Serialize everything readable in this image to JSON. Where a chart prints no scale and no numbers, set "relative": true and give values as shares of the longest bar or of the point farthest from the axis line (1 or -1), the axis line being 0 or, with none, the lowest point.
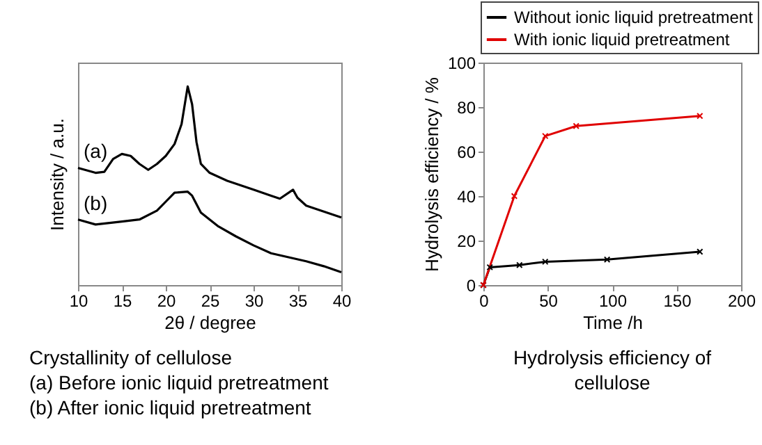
{
  "chart_data": [
    {
      "type": "line",
      "relative": true,
      "xlabel": "2θ / degree",
      "ylabel": "Intensity / a.u.",
      "xlim": [
        10,
        40
      ],
      "xticks": [
        10,
        15,
        20,
        25,
        30,
        35,
        40
      ],
      "tick_labels": "x",
      "series": [
        {
          "color": "#000000",
          "x": [
            10,
            12,
            13,
            14,
            15,
            16,
            17,
            18,
            19,
            20,
            21,
            21.8,
            22.5,
            23,
            23.5,
            24,
            25,
            27,
            30,
            32,
            33,
            34.5,
            35,
            36,
            38,
            40
          ],
          "values": [
            0.59,
            0.565,
            0.57,
            0.635,
            0.66,
            0.65,
            0.61,
            0.58,
            0.61,
            0.65,
            0.71,
            0.81,
            1,
            0.91,
            0.72,
            0.61,
            0.565,
            0.525,
            0.48,
            0.45,
            0.435,
            0.48,
            0.44,
            0.4,
            0.37,
            0.34
          ]
        },
        {
          "color": "#000000",
          "x": [
            10,
            12,
            15,
            17,
            19,
            20,
            21,
            22.5,
            23,
            24,
            26,
            28,
            30,
            32,
            34,
            36,
            38,
            40
          ],
          "values": [
            0.33,
            0.305,
            0.32,
            0.33,
            0.375,
            0.42,
            0.465,
            0.47,
            0.45,
            0.365,
            0.295,
            0.245,
            0.2,
            0.16,
            0.14,
            0.12,
            0.095,
            0.065
          ]
        }
      ],
      "annotations": [
        {
          "text": "(a)",
          "x": 10,
          "y": 0.59
        },
        {
          "text": "(b)",
          "x": 10,
          "y": 0.33
        },
        "Crystallinity of cellulose",
        "  (a) Before ionic liquid pretreatment",
        "  (b) After ionic liquid pretreatment"
      ]
    },
    {
      "type": "line",
      "xlabel": "Time /h",
      "ylabel": "Hydrolysis efficiency / %",
      "xlim": [
        0,
        200
      ],
      "xticks": [
        0,
        50,
        100,
        150,
        200
      ],
      "ylim": [
        0,
        100
      ],
      "yticks": [
        0,
        20,
        40,
        60,
        80,
        100
      ],
      "legend": "top",
      "marker": "cross",
      "series": [
        {
          "name": "Without ionic liquid pretreatment",
          "color": "#000000",
          "x": [
            0,
            5,
            28,
            48,
            96,
            168
          ],
          "values": [
            0,
            8,
            9,
            10.5,
            11.5,
            15
          ]
        },
        {
          "name": "With ionic liquid pretreatment",
          "color": "#e00000",
          "x": [
            0,
            24,
            48,
            72,
            168
          ],
          "values": [
            0,
            40,
            67,
            71.5,
            76
          ]
        }
      ],
      "annotations": [
        "Hydrolysis efficiency of cellulose"
      ]
    }
  ]
}
